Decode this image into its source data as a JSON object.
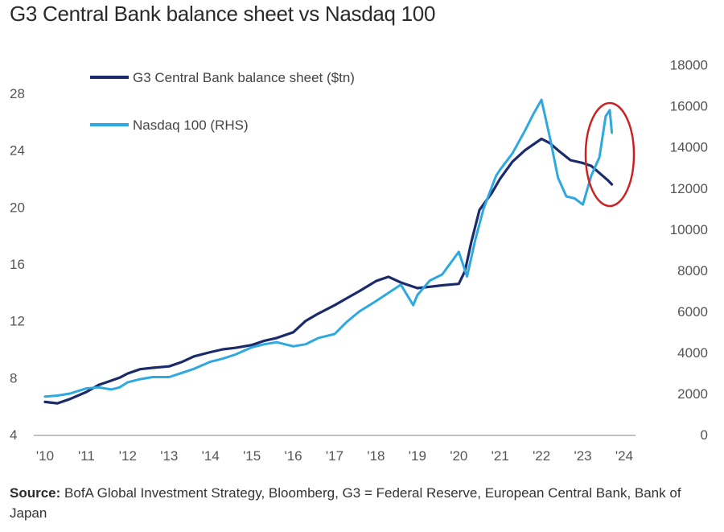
{
  "chart_data": {
    "type": "line",
    "title": "G3 Central Bank balance sheet vs Nasdaq 100",
    "x_tick_labels": [
      "'10",
      "'11",
      "'12",
      "'13",
      "'14",
      "'15",
      "'16",
      "'17",
      "'18",
      "'19",
      "'20",
      "'21",
      "'22",
      "'23",
      "'24"
    ],
    "y_left": {
      "ylim": [
        4,
        30
      ],
      "ticks": [
        4,
        8,
        12,
        16,
        20,
        24,
        28
      ]
    },
    "y_right": {
      "ylim": [
        0,
        18000
      ],
      "ticks": [
        0,
        2000,
        4000,
        6000,
        8000,
        10000,
        12000,
        14000,
        16000,
        18000
      ]
    },
    "grid": false,
    "legend_position": "top-left",
    "series": [
      {
        "name": "G3 Central Bank balance sheet ($tn)",
        "axis": "left",
        "color": "#1b2a6b",
        "x": [
          2010.0,
          2010.3,
          2010.6,
          2011.0,
          2011.3,
          2011.6,
          2011.8,
          2012.0,
          2012.3,
          2012.6,
          2013.0,
          2013.3,
          2013.6,
          2014.0,
          2014.3,
          2014.6,
          2015.0,
          2015.3,
          2015.6,
          2016.0,
          2016.3,
          2016.6,
          2017.0,
          2017.3,
          2017.6,
          2018.0,
          2018.3,
          2018.6,
          2019.0,
          2019.3,
          2019.6,
          2020.0,
          2020.15,
          2020.3,
          2020.5,
          2020.8,
          2021.0,
          2021.3,
          2021.6,
          2022.0,
          2022.2,
          2022.4,
          2022.7,
          2023.0,
          2023.2,
          2023.4,
          2023.6,
          2023.7
        ],
        "y": [
          6.3,
          6.2,
          6.5,
          7.0,
          7.5,
          7.8,
          8.0,
          8.3,
          8.6,
          8.7,
          8.8,
          9.1,
          9.5,
          9.8,
          10.0,
          10.1,
          10.3,
          10.6,
          10.8,
          11.2,
          12.0,
          12.5,
          13.1,
          13.6,
          14.1,
          14.8,
          15.1,
          14.7,
          14.3,
          14.4,
          14.5,
          14.6,
          15.5,
          17.5,
          19.8,
          21.0,
          22.0,
          23.2,
          24.0,
          24.8,
          24.5,
          24.0,
          23.3,
          23.1,
          22.9,
          22.4,
          21.9,
          21.6
        ]
      },
      {
        "name": "Nasdaq 100 (RHS)",
        "axis": "right",
        "color": "#2ea8e0",
        "x": [
          2010.0,
          2010.3,
          2010.6,
          2011.0,
          2011.3,
          2011.6,
          2011.8,
          2012.0,
          2012.3,
          2012.6,
          2013.0,
          2013.3,
          2013.6,
          2014.0,
          2014.3,
          2014.6,
          2015.0,
          2015.3,
          2015.6,
          2016.0,
          2016.3,
          2016.6,
          2017.0,
          2017.3,
          2017.6,
          2018.0,
          2018.3,
          2018.6,
          2018.9,
          2019.0,
          2019.3,
          2019.6,
          2020.0,
          2020.2,
          2020.4,
          2020.6,
          2020.9,
          2021.0,
          2021.3,
          2021.6,
          2021.8,
          2022.0,
          2022.2,
          2022.4,
          2022.6,
          2022.8,
          2023.0,
          2023.2,
          2023.4,
          2023.55,
          2023.65,
          2023.7
        ],
        "y": [
          1850,
          1900,
          2000,
          2250,
          2300,
          2200,
          2300,
          2550,
          2700,
          2800,
          2800,
          3000,
          3200,
          3550,
          3700,
          3900,
          4250,
          4400,
          4500,
          4300,
          4400,
          4700,
          4900,
          5500,
          6000,
          6500,
          6900,
          7300,
          6300,
          6800,
          7500,
          7800,
          8900,
          7700,
          9500,
          11000,
          12600,
          12900,
          13700,
          14800,
          15600,
          16300,
          14500,
          12500,
          11600,
          11500,
          11200,
          12600,
          13500,
          15500,
          15800,
          14700
        ]
      }
    ]
  },
  "source": {
    "label": "Source:",
    "text": "BofA Global Investment Strategy, Bloomberg, G3 = Federal Reserve, European Central Bank, Bank of Japan"
  },
  "colors": {
    "annotation_circle": "#cc2222"
  }
}
